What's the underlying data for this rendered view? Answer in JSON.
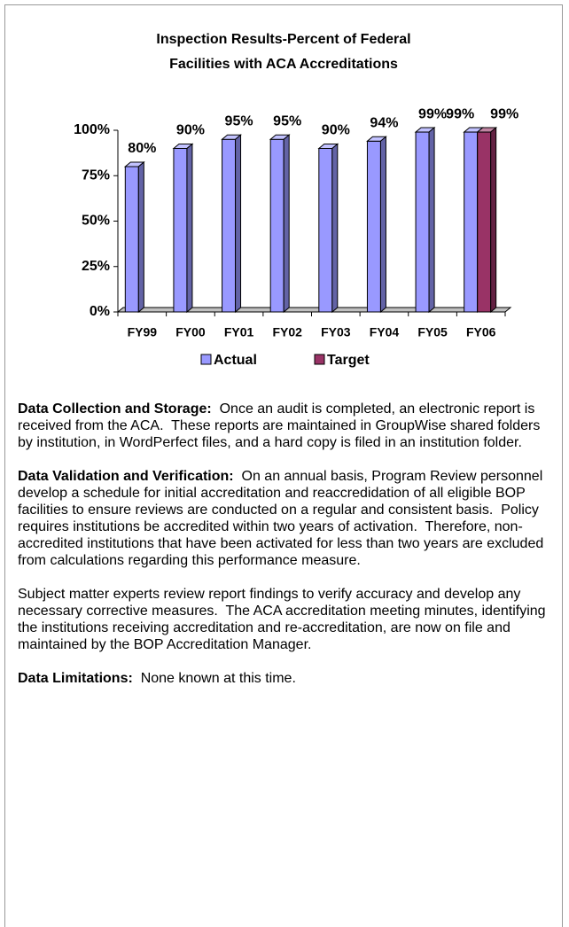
{
  "chart_data": {
    "type": "bar",
    "title": [
      "Inspection Results-Percent of Federal",
      "Facilities with ACA Accreditations"
    ],
    "categories": [
      "FY99",
      "FY00",
      "FY01",
      "FY02",
      "FY03",
      "FY04",
      "FY05",
      "FY06"
    ],
    "series": [
      {
        "name": "Actual",
        "color": "#9999ff",
        "values": [
          80,
          90,
          95,
          95,
          90,
          94,
          99,
          99
        ],
        "value_labels": [
          "80%",
          "90%",
          "95%",
          "95%",
          "90%",
          "94%",
          "99%",
          "99%"
        ]
      },
      {
        "name": "Target",
        "color": "#993366",
        "values": [
          null,
          null,
          null,
          null,
          null,
          null,
          null,
          99
        ],
        "value_labels": [
          null,
          null,
          null,
          null,
          null,
          null,
          null,
          "99%"
        ]
      }
    ],
    "ylim": [
      0,
      100
    ],
    "yticks": [
      {
        "value": 0,
        "label": "0%"
      },
      {
        "value": 25,
        "label": "25%"
      },
      {
        "value": 50,
        "label": "50%"
      },
      {
        "value": 75,
        "label": "75%"
      },
      {
        "value": 100,
        "label": "100%"
      }
    ],
    "legend": "bottom"
  },
  "document": {
    "paragraphs": [
      {
        "label": "Data Collection and Storage:",
        "text": "  Once an audit is completed, an electronic report is received from the ACA.  These reports are maintained in GroupWise shared folders by institution, in WordPerfect files, and a hard copy is filed in an institution folder."
      },
      {
        "label": "Data Validation and Verification:",
        "text": "  On an annual basis, Program Review personnel develop a schedule for initial accreditation and reaccredidation of all eligible BOP facilities to ensure reviews are conducted on a regular and consistent basis.  Policy requires institutions be accredited within two years of activation.  Therefore, non-accredited institutions that have been activated for less than two years are excluded from calculations regarding this performance measure."
      },
      {
        "text": "Subject matter experts review report findings to verify accuracy and develop any necessary corrective measures.  The ACA accreditation meeting minutes, identifying the institutions receiving accreditation and re-accreditation, are now on file and maintained by the BOP Accreditation Manager."
      },
      {
        "label": "Data Limitations:",
        "text": "  None known at this time."
      }
    ]
  }
}
